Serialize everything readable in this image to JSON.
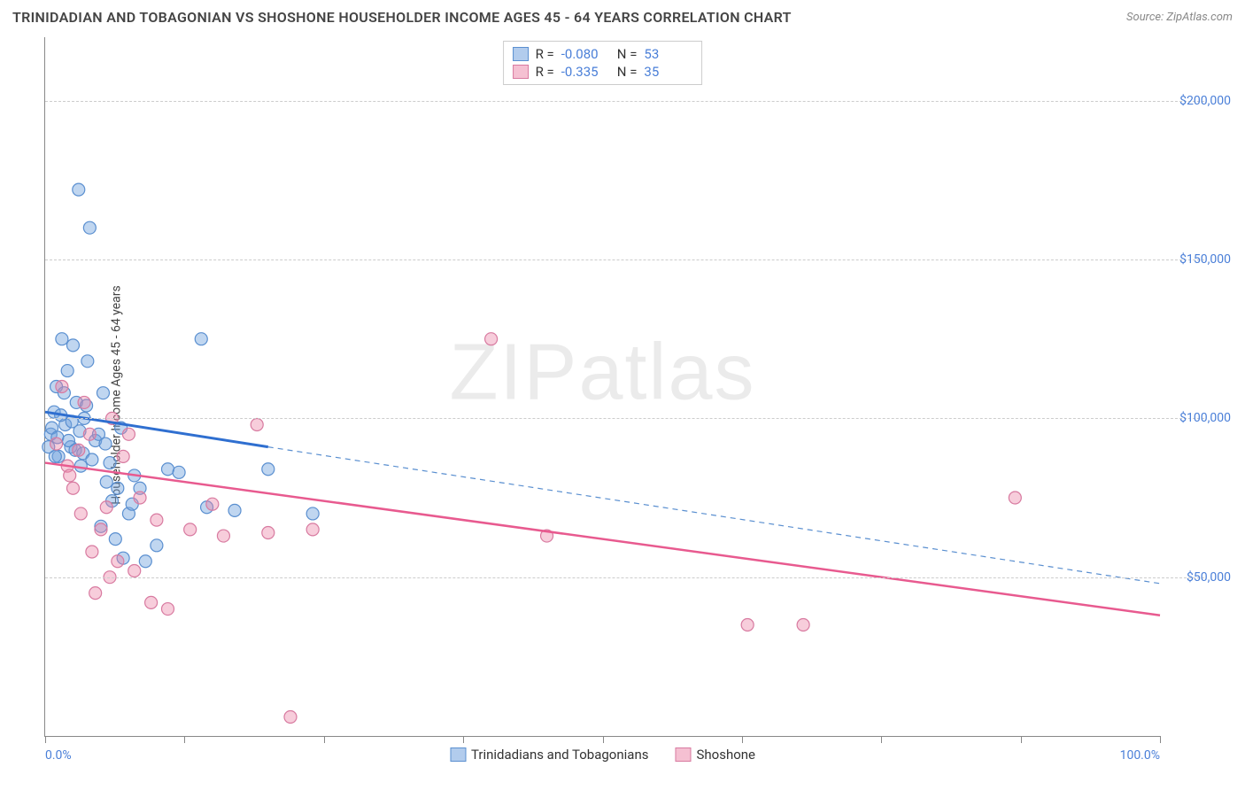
{
  "title": "TRINIDADIAN AND TOBAGONIAN VS SHOSHONE HOUSEHOLDER INCOME AGES 45 - 64 YEARS CORRELATION CHART",
  "source": "Source: ZipAtlas.com",
  "y_axis_label": "Householder Income Ages 45 - 64 years",
  "watermark": "ZIPatlas",
  "chart": {
    "type": "scatter-with-regression",
    "background_color": "#ffffff",
    "grid_color": "#cccccc",
    "axis_color": "#888888",
    "tick_label_color": "#4a7fd8",
    "xlim": [
      0,
      100
    ],
    "ylim": [
      0,
      220000
    ],
    "x_ticks": [
      0,
      12.5,
      25,
      37.5,
      50,
      62.5,
      75,
      87.5,
      100
    ],
    "x_tick_labels": {
      "0": "0.0%",
      "100": "100.0%"
    },
    "y_gridlines": [
      50000,
      100000,
      150000,
      200000
    ],
    "y_tick_labels": {
      "50000": "$50,000",
      "100000": "$100,000",
      "150000": "$150,000",
      "200000": "$200,000"
    },
    "series": [
      {
        "name": "Trinidadians and Tobagonians",
        "color_fill": "rgba(115,163,222,0.45)",
        "color_stroke": "#5a8fd0",
        "marker_radius": 7,
        "R": "-0.080",
        "N": "53",
        "regression": {
          "solid": {
            "x1": 0,
            "y1": 102000,
            "x2": 20,
            "y2": 91000,
            "stroke": "#2f6fd0",
            "width": 3
          },
          "dashed": {
            "x1": 20,
            "y1": 91000,
            "x2": 100,
            "y2": 48000,
            "stroke": "#5a8fd0",
            "width": 1.2,
            "dash": "6,5"
          }
        },
        "points": [
          [
            0.5,
            95000
          ],
          [
            0.8,
            102000
          ],
          [
            1.0,
            110000
          ],
          [
            1.2,
            88000
          ],
          [
            1.5,
            125000
          ],
          [
            1.8,
            98000
          ],
          [
            2.0,
            115000
          ],
          [
            2.3,
            91000
          ],
          [
            2.5,
            123000
          ],
          [
            2.8,
            105000
          ],
          [
            3.0,
            172000
          ],
          [
            3.2,
            85000
          ],
          [
            3.5,
            100000
          ],
          [
            3.8,
            118000
          ],
          [
            4.0,
            160000
          ],
          [
            4.5,
            93000
          ],
          [
            5.0,
            66000
          ],
          [
            5.2,
            108000
          ],
          [
            5.5,
            80000
          ],
          [
            6.0,
            74000
          ],
          [
            6.3,
            62000
          ],
          [
            6.8,
            97000
          ],
          [
            7.0,
            56000
          ],
          [
            7.5,
            70000
          ],
          [
            8.0,
            82000
          ],
          [
            8.5,
            78000
          ],
          [
            9.0,
            55000
          ],
          [
            10.0,
            60000
          ],
          [
            11.0,
            84000
          ],
          [
            12.0,
            83000
          ],
          [
            14.0,
            125000
          ],
          [
            14.5,
            72000
          ],
          [
            17.0,
            71000
          ],
          [
            20.0,
            84000
          ],
          [
            24.0,
            70000
          ],
          [
            0.3,
            91000
          ],
          [
            0.6,
            97000
          ],
          [
            0.9,
            88000
          ],
          [
            1.1,
            94000
          ],
          [
            1.4,
            101000
          ],
          [
            1.7,
            108000
          ],
          [
            2.1,
            93000
          ],
          [
            2.4,
            99000
          ],
          [
            2.7,
            90000
          ],
          [
            3.1,
            96000
          ],
          [
            3.4,
            89000
          ],
          [
            3.7,
            104000
          ],
          [
            4.2,
            87000
          ],
          [
            4.8,
            95000
          ],
          [
            5.4,
            92000
          ],
          [
            5.8,
            86000
          ],
          [
            6.5,
            78000
          ],
          [
            7.8,
            73000
          ]
        ]
      },
      {
        "name": "Shoshone",
        "color_fill": "rgba(235,130,165,0.40)",
        "color_stroke": "#d87aa0",
        "marker_radius": 7,
        "R": "-0.335",
        "N": "35",
        "regression": {
          "solid": {
            "x1": 0,
            "y1": 86000,
            "x2": 100,
            "y2": 38000,
            "stroke": "#e85a8f",
            "width": 2.5
          }
        },
        "points": [
          [
            1.0,
            92000
          ],
          [
            1.5,
            110000
          ],
          [
            2.0,
            85000
          ],
          [
            2.5,
            78000
          ],
          [
            3.0,
            90000
          ],
          [
            3.5,
            105000
          ],
          [
            4.0,
            95000
          ],
          [
            4.5,
            45000
          ],
          [
            5.0,
            65000
          ],
          [
            5.5,
            72000
          ],
          [
            6.0,
            100000
          ],
          [
            6.5,
            55000
          ],
          [
            7.0,
            88000
          ],
          [
            7.5,
            95000
          ],
          [
            8.0,
            52000
          ],
          [
            8.5,
            75000
          ],
          [
            9.5,
            42000
          ],
          [
            10.0,
            68000
          ],
          [
            11.0,
            40000
          ],
          [
            13.0,
            65000
          ],
          [
            15.0,
            73000
          ],
          [
            16.0,
            63000
          ],
          [
            19.0,
            98000
          ],
          [
            20.0,
            64000
          ],
          [
            22.0,
            6000
          ],
          [
            24.0,
            65000
          ],
          [
            40.0,
            125000
          ],
          [
            45.0,
            63000
          ],
          [
            63.0,
            35000
          ],
          [
            68.0,
            35000
          ],
          [
            87.0,
            75000
          ],
          [
            2.2,
            82000
          ],
          [
            3.2,
            70000
          ],
          [
            4.2,
            58000
          ],
          [
            5.8,
            50000
          ]
        ]
      }
    ]
  },
  "legend": {
    "series1_label": "Trinidadians and Tobagonians",
    "series2_label": "Shoshone"
  },
  "stats_box": {
    "R_label": "R =",
    "N_label": "N ="
  }
}
